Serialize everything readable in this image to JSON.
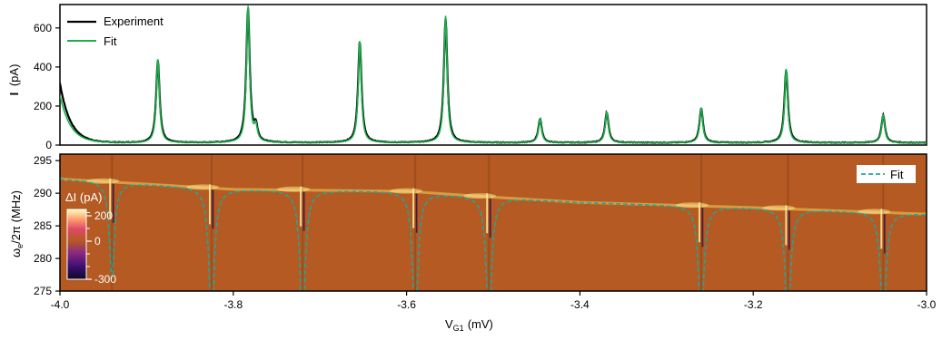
{
  "chart_data": [
    {
      "type": "line",
      "panel": "top",
      "ylabel_main": "I",
      "ylabel_unit": "(pA)",
      "xlim": [
        -4.0,
        -3.0
      ],
      "ylim": [
        0,
        720
      ],
      "yticks": [
        0,
        200,
        400,
        600
      ],
      "ytick_labels": [
        "0",
        "200",
        "400",
        "600"
      ],
      "grid": false,
      "legend_position": "top-left",
      "series": [
        {
          "name": "Experiment",
          "color": "#000000"
        },
        {
          "name": "Fit",
          "color": "#1ab04a"
        }
      ],
      "baseline_pA": 12,
      "edge_start_pA": 305,
      "peaks": [
        {
          "x": -3.887,
          "y": 430
        },
        {
          "x": -3.783,
          "y": 700
        },
        {
          "x": -3.774,
          "y": 75
        },
        {
          "x": -3.654,
          "y": 530
        },
        {
          "x": -3.555,
          "y": 650
        },
        {
          "x": -3.446,
          "y": 125
        },
        {
          "x": -3.369,
          "y": 158
        },
        {
          "x": -3.26,
          "y": 180
        },
        {
          "x": -3.162,
          "y": 380
        },
        {
          "x": -3.05,
          "y": 145
        }
      ]
    },
    {
      "type": "heatmap",
      "panel": "bottom",
      "ylabel_main": "ω",
      "ylabel_sub": "e",
      "ylabel_rest": "/2π (MHz)",
      "xlabel_main": "V",
      "xlabel_sub": "G1",
      "xlabel_unit": "(mV)",
      "xlim": [
        -4.0,
        -3.0
      ],
      "ylim": [
        275,
        296
      ],
      "xticks": [
        -4.0,
        -3.8,
        -3.6,
        -3.4,
        -3.2,
        -3.0
      ],
      "xtick_labels": [
        "-4.0",
        "-3.8",
        "-3.6",
        "-3.4",
        "-3.2",
        "-3.0"
      ],
      "yticks": [
        275,
        280,
        285,
        290,
        295
      ],
      "ytick_labels": [
        "275",
        "280",
        "285",
        "290",
        "295"
      ],
      "background_color": "#b45a22",
      "colorbar": {
        "title": "ΔI (pA)",
        "range": [
          -300,
          250
        ],
        "ticks": [
          200,
          0,
          -300
        ],
        "tick_labels": [
          "200",
          "0",
          "-300"
        ],
        "colormap": "inferno"
      },
      "legend": {
        "name": "Fit",
        "style": "dashed",
        "color": "#21a69a",
        "position": "top-right"
      },
      "fit_baseline_MHz": [
        {
          "x": -4.0,
          "y": 292.2
        },
        {
          "x": -3.8,
          "y": 290.6
        },
        {
          "x": -3.6,
          "y": 290.3
        },
        {
          "x": -3.5,
          "y": 289.4
        },
        {
          "x": -3.4,
          "y": 288.6
        },
        {
          "x": -3.2,
          "y": 287.8
        },
        {
          "x": -3.0,
          "y": 286.8
        }
      ],
      "dips": [
        {
          "x": -3.94,
          "bottom": 283
        },
        {
          "x": -3.825,
          "bottom": 275
        },
        {
          "x": -3.72,
          "bottom": 275
        },
        {
          "x": -3.59,
          "bottom": 275
        },
        {
          "x": -3.505,
          "bottom": 275
        },
        {
          "x": -3.26,
          "bottom": 275
        },
        {
          "x": -3.16,
          "bottom": 275
        },
        {
          "x": -3.05,
          "bottom": 275
        }
      ]
    }
  ]
}
